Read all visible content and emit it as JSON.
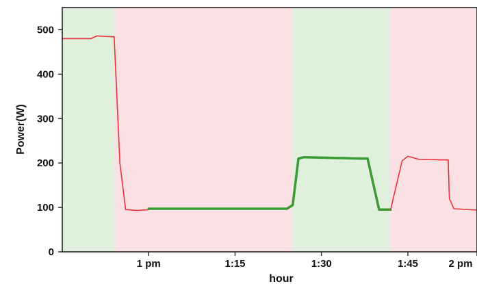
{
  "chart_data": {
    "type": "line",
    "xlabel": "hour",
    "ylabel": "Power(W)",
    "ylim": [
      0,
      550
    ],
    "xlim": [
      "12:45",
      "13:57"
    ],
    "y_ticks": [
      0,
      100,
      200,
      300,
      400,
      500
    ],
    "x_ticks": [
      {
        "value": "13:00",
        "label": "1 pm"
      },
      {
        "value": "13:15",
        "label": "1:15"
      },
      {
        "value": "13:30",
        "label": "1:30"
      },
      {
        "value": "13:45",
        "label": "1:45"
      },
      {
        "value": "14:00",
        "label": "2 pm"
      }
    ],
    "grid": false,
    "shaded_regions": [
      {
        "start": "12:45",
        "end": "12:54",
        "color": "#dff0dc"
      },
      {
        "start": "12:54",
        "end": "13:25",
        "color": "#fbe1e3"
      },
      {
        "start": "13:25",
        "end": "13:42",
        "color": "#dff0dc"
      },
      {
        "start": "13:42",
        "end": "13:57",
        "color": "#fbe1e3"
      }
    ],
    "series": [
      {
        "color": "#e8323c",
        "width": 1.6,
        "points": [
          [
            "12:45",
            480
          ],
          [
            "12:50",
            480
          ],
          [
            "12:51",
            486
          ],
          [
            "12:54",
            484
          ],
          [
            "12:55",
            200
          ],
          [
            "12:56",
            95
          ],
          [
            "12:58",
            93
          ],
          [
            "13:00",
            95
          ]
        ]
      },
      {
        "color": "#3a9a34",
        "width": 3.5,
        "points": [
          [
            "13:00",
            97
          ],
          [
            "13:12",
            97
          ],
          [
            "13:24",
            97
          ],
          [
            "13:25",
            105
          ],
          [
            "13:26",
            210
          ],
          [
            "13:27",
            213
          ],
          [
            "13:37",
            210
          ],
          [
            "13:38",
            210
          ],
          [
            "13:40",
            95
          ],
          [
            "13:42",
            95
          ]
        ]
      },
      {
        "color": "#e8323c",
        "width": 1.6,
        "points": [
          [
            "13:42",
            95
          ],
          [
            "13:44",
            205
          ],
          [
            "13:45",
            215
          ],
          [
            "13:47",
            208
          ],
          [
            "13:51",
            207
          ],
          [
            "13:52",
            207
          ],
          [
            "13:52.2",
            120
          ],
          [
            "13:53",
            97
          ],
          [
            "13:57",
            94
          ]
        ]
      }
    ]
  }
}
